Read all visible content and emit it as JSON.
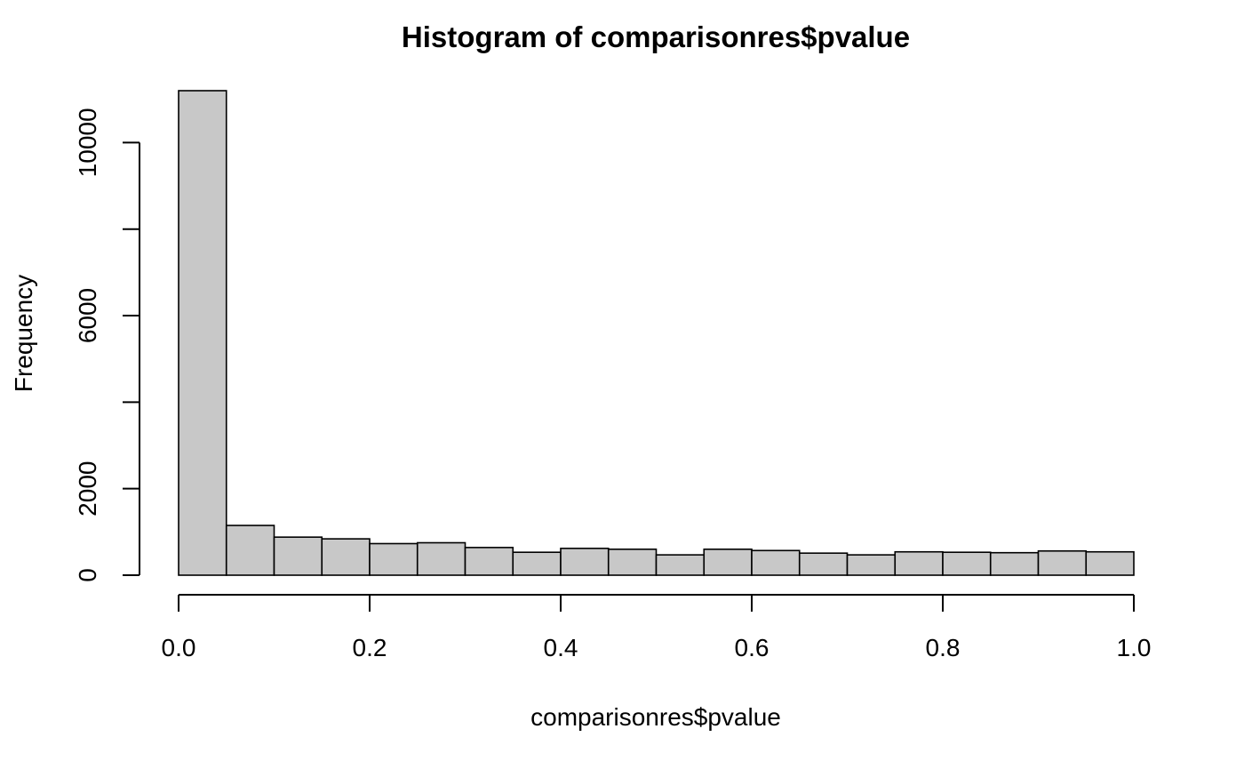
{
  "chart_data": {
    "type": "bar",
    "title": "Histogram of comparisonres$pvalue",
    "xlabel": "comparisonres$pvalue",
    "ylabel": "Frequency",
    "bins": [
      {
        "x0": 0.0,
        "x1": 0.05,
        "count": 11200
      },
      {
        "x0": 0.05,
        "x1": 0.1,
        "count": 1150
      },
      {
        "x0": 0.1,
        "x1": 0.15,
        "count": 880
      },
      {
        "x0": 0.15,
        "x1": 0.2,
        "count": 840
      },
      {
        "x0": 0.2,
        "x1": 0.25,
        "count": 730
      },
      {
        "x0": 0.25,
        "x1": 0.3,
        "count": 750
      },
      {
        "x0": 0.3,
        "x1": 0.35,
        "count": 640
      },
      {
        "x0": 0.35,
        "x1": 0.4,
        "count": 530
      },
      {
        "x0": 0.4,
        "x1": 0.45,
        "count": 620
      },
      {
        "x0": 0.45,
        "x1": 0.5,
        "count": 600
      },
      {
        "x0": 0.5,
        "x1": 0.55,
        "count": 470
      },
      {
        "x0": 0.55,
        "x1": 0.6,
        "count": 600
      },
      {
        "x0": 0.6,
        "x1": 0.65,
        "count": 570
      },
      {
        "x0": 0.65,
        "x1": 0.7,
        "count": 510
      },
      {
        "x0": 0.7,
        "x1": 0.75,
        "count": 470
      },
      {
        "x0": 0.75,
        "x1": 0.8,
        "count": 540
      },
      {
        "x0": 0.8,
        "x1": 0.85,
        "count": 530
      },
      {
        "x0": 0.85,
        "x1": 0.9,
        "count": 520
      },
      {
        "x0": 0.9,
        "x1": 0.95,
        "count": 560
      },
      {
        "x0": 0.95,
        "x1": 1.0,
        "count": 540
      }
    ],
    "xlim": [
      0,
      1
    ],
    "ylim": [
      0,
      11200
    ],
    "x_ticks": [
      0.0,
      0.2,
      0.4,
      0.6,
      0.8,
      1.0
    ],
    "x_tick_labels": [
      "0.0",
      "0.2",
      "0.4",
      "0.6",
      "0.8",
      "1.0"
    ],
    "y_ticks": [
      0,
      2000,
      4000,
      6000,
      8000,
      10000
    ],
    "y_tick_labels": [
      "0",
      "2000",
      "",
      "6000",
      "",
      "10000"
    ],
    "grid": false,
    "legend": "none",
    "bar_fill": "#c8c8c8",
    "bar_stroke": "#000000"
  }
}
